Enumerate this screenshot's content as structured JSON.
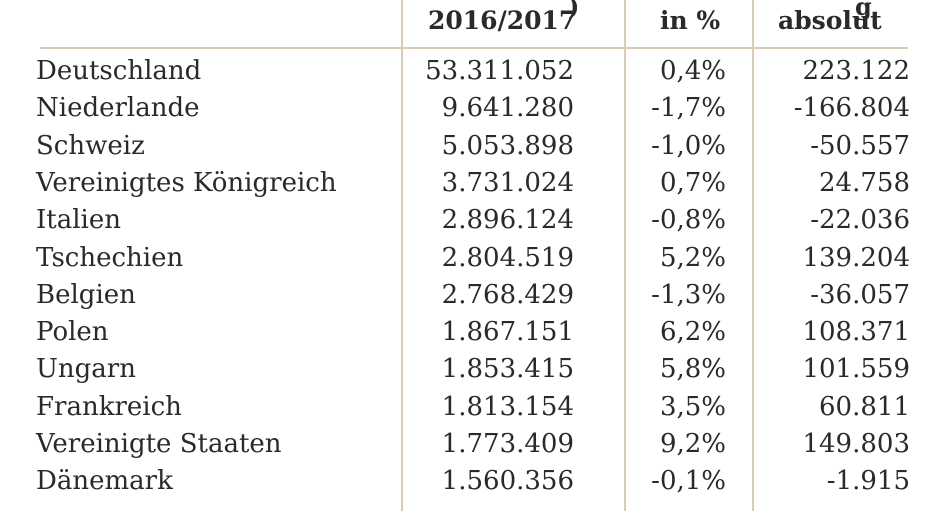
{
  "table": {
    "headers": {
      "visits": "2016/2017",
      "pct": "in %",
      "abs": "absolut"
    },
    "top_cut_fragments": {
      "visits": ")",
      "abs": "g"
    },
    "rows": [
      {
        "country": "Deutschland",
        "visits": "53.311.052",
        "pct": "0,4%",
        "abs": "223.122"
      },
      {
        "country": "Niederlande",
        "visits": "9.641.280",
        "pct": "-1,7%",
        "abs": "-166.804"
      },
      {
        "country": "Schweiz",
        "visits": "5.053.898",
        "pct": "-1,0%",
        "abs": "-50.557"
      },
      {
        "country": "Vereinigtes Königreich",
        "visits": "3.731.024",
        "pct": "0,7%",
        "abs": "24.758"
      },
      {
        "country": "Italien",
        "visits": "2.896.124",
        "pct": "-0,8%",
        "abs": "-22.036"
      },
      {
        "country": "Tschechien",
        "visits": "2.804.519",
        "pct": "5,2%",
        "abs": "139.204"
      },
      {
        "country": "Belgien",
        "visits": "2.768.429",
        "pct": "-1,3%",
        "abs": "-36.057"
      },
      {
        "country": "Polen",
        "visits": "1.867.151",
        "pct": "6,2%",
        "abs": "108.371"
      },
      {
        "country": "Ungarn",
        "visits": "1.853.415",
        "pct": "5,8%",
        "abs": "101.559"
      },
      {
        "country": "Frankreich",
        "visits": "1.813.154",
        "pct": "3,5%",
        "abs": "60.811"
      },
      {
        "country": "Vereinigte Staaten",
        "visits": "1.773.409",
        "pct": "9,2%",
        "abs": "149.803"
      },
      {
        "country": "Dänemark",
        "visits": "1.560.356",
        "pct": "-0,1%",
        "abs": "-1.915"
      }
    ]
  },
  "chart_data": {
    "type": "table",
    "columns": [
      "",
      "2016/2017",
      "in %",
      "absolut"
    ],
    "rows": [
      [
        "Deutschland",
        "53.311.052",
        "0,4%",
        "223.122"
      ],
      [
        "Niederlande",
        "9.641.280",
        "-1,7%",
        "-166.804"
      ],
      [
        "Schweiz",
        "5.053.898",
        "-1,0%",
        "-50.557"
      ],
      [
        "Vereinigtes Königreich",
        "3.731.024",
        "0,7%",
        "24.758"
      ],
      [
        "Italien",
        "2.896.124",
        "-0,8%",
        "-22.036"
      ],
      [
        "Tschechien",
        "2.804.519",
        "5,2%",
        "139.204"
      ],
      [
        "Belgien",
        "2.768.429",
        "-1,3%",
        "-36.057"
      ],
      [
        "Polen",
        "1.867.151",
        "6,2%",
        "108.371"
      ],
      [
        "Ungarn",
        "1.853.415",
        "5,8%",
        "101.559"
      ],
      [
        "Frankreich",
        "1.813.154",
        "3,5%",
        "60.811"
      ],
      [
        "Vereinigte Staaten",
        "1.773.409",
        "9,2%",
        "149.803"
      ],
      [
        "Dänemark",
        "1.560.356",
        "-0,1%",
        "-1.915"
      ]
    ]
  },
  "colors": {
    "rule": "#d8ccb8",
    "text": "#2a2a2a",
    "background": "#ffffff"
  }
}
